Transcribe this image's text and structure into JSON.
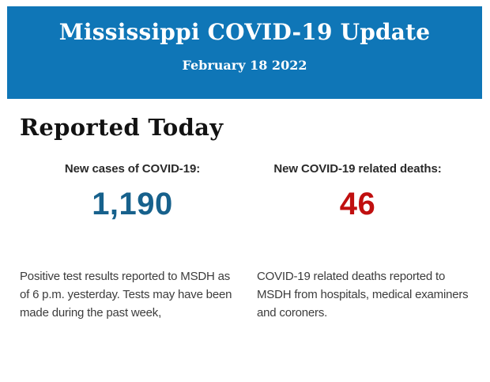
{
  "header": {
    "title": "Mississippi COVID-19 Update",
    "date": "February 18 2022",
    "background_color": "#0f76b7",
    "text_color": "#ffffff"
  },
  "section": {
    "heading": "Reported Today"
  },
  "stats": [
    {
      "label": "New cases of COVID-19:",
      "value": "1,190",
      "value_color": "#17618c",
      "description": "Positive test results reported to MSDH as of 6 p.m. yesterday. Tests may have been made during the past week,"
    },
    {
      "label": "New COVID-19 related deaths:",
      "value": "46",
      "value_color": "#c00f0f",
      "description": "COVID-19 related deaths reported to MSDH from hospitals, medical examiners and coroners."
    }
  ]
}
